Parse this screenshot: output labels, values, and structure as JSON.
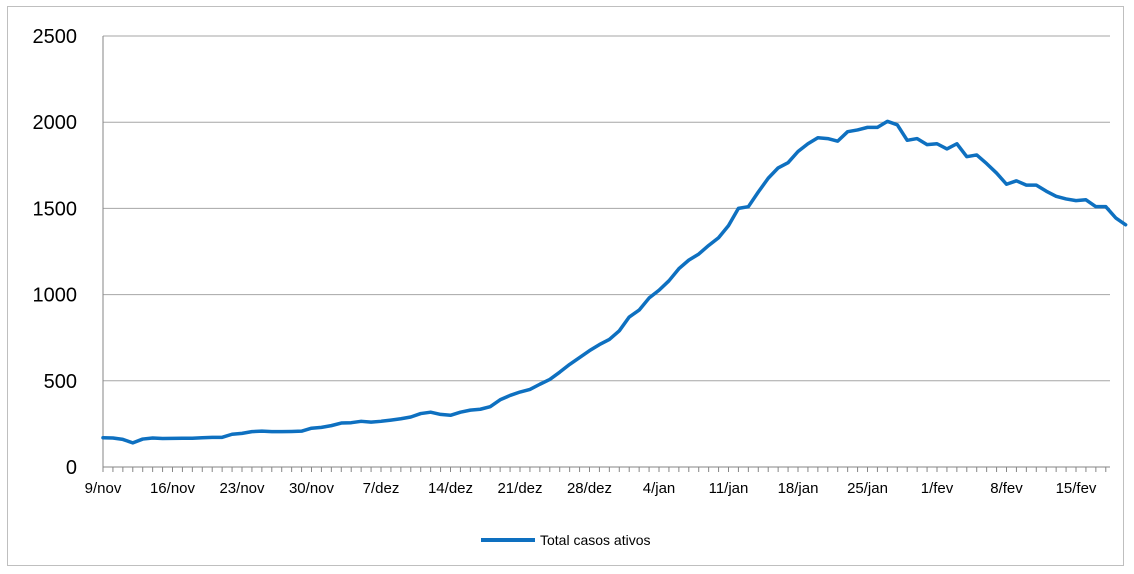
{
  "chart_data": {
    "type": "line",
    "title": "",
    "xlabel": "",
    "ylabel": "",
    "ylim": [
      0,
      2500
    ],
    "yticks": [
      "0",
      "500",
      "1000",
      "1500",
      "2000",
      "2500"
    ],
    "xtick_labels": [
      "9/nov",
      "16/nov",
      "23/nov",
      "30/nov",
      "7/dez",
      "14/dez",
      "21/dez",
      "28/dez",
      "4/jan",
      "11/jan",
      "18/jan",
      "25/jan",
      "1/fev",
      "8/fev",
      "15/fev"
    ],
    "grid": "horizontal",
    "legend": "bottom",
    "series": [
      {
        "name": "Total casos ativos",
        "color": "#0e70c0",
        "values": [
          170,
          168,
          160,
          140,
          162,
          168,
          165,
          166,
          167,
          167,
          170,
          172,
          172,
          190,
          195,
          205,
          208,
          205,
          205,
          206,
          208,
          225,
          230,
          240,
          255,
          257,
          265,
          260,
          265,
          272,
          280,
          290,
          310,
          318,
          305,
          300,
          318,
          330,
          335,
          350,
          390,
          415,
          435,
          450,
          480,
          508,
          550,
          595,
          635,
          675,
          710,
          740,
          790,
          870,
          910,
          980,
          1025,
          1080,
          1150,
          1200,
          1235,
          1285,
          1330,
          1400,
          1500,
          1510,
          1595,
          1675,
          1735,
          1765,
          1830,
          1875,
          1910,
          1905,
          1890,
          1945,
          1955,
          1970,
          1970,
          2005,
          1985,
          1895,
          1905,
          1870,
          1875,
          1845,
          1875,
          1800,
          1810,
          1760,
          1705,
          1640,
          1660,
          1635,
          1635,
          1600,
          1570,
          1555,
          1545,
          1550,
          1510,
          1510,
          1445,
          1405
        ]
      }
    ]
  }
}
